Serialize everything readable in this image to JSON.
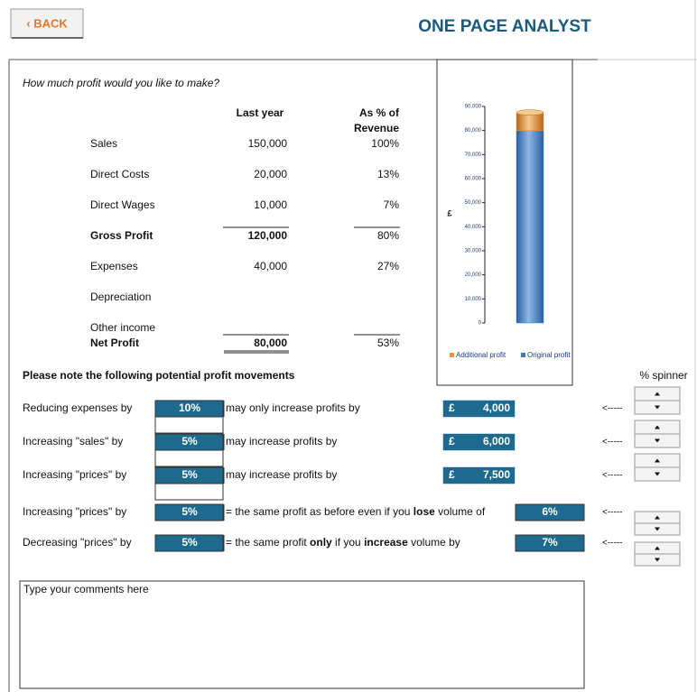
{
  "header": {
    "back": "‹ BACK",
    "title": "ONE PAGE ANALYST"
  },
  "question": "How much profit would you like to make?",
  "table": {
    "headers": [
      "Last year",
      "As % of",
      "Revenue"
    ],
    "rows": [
      {
        "label": "Sales",
        "value": "150,000",
        "pct": "100%"
      },
      {
        "label": "Direct Costs",
        "value": "20,000",
        "pct": "13%"
      },
      {
        "label": "Direct Wages",
        "value": "10,000",
        "pct": "7%"
      },
      {
        "label": "Gross Profit",
        "value": "120,000",
        "pct": "80%",
        "bold": true
      },
      {
        "label": "Expenses",
        "value": "40,000",
        "pct": "27%"
      },
      {
        "label": "Depreciation"
      },
      {
        "label": "Other income"
      },
      {
        "label": "Net Profit",
        "value": "80,000",
        "pct": "53%",
        "bold": true
      }
    ]
  },
  "chart_data": {
    "type": "bar",
    "stacked": true,
    "y_label": "£",
    "categories": [
      null
    ],
    "series": [
      {
        "name": "Original profit",
        "color": "#3d7cc4",
        "values": [
          80000
        ]
      },
      {
        "name": "Additional profit",
        "color": "#e8953a",
        "values": [
          7500
        ]
      }
    ],
    "ylim": [
      0,
      90000
    ],
    "yticks": [
      0,
      {
        "value": 10000,
        "label": "10,000"
      },
      {
        "value": 20000,
        "label": "20,000"
      },
      {
        "value": 30000,
        "label": "30,000"
      },
      {
        "value": 40000,
        "label": "40,000"
      },
      {
        "value": 50000,
        "label": "50,000"
      },
      {
        "value": 60000,
        "label": "60,000"
      },
      {
        "value": 70000,
        "label": "70,000"
      },
      {
        "value": 80000,
        "label": "80,000"
      },
      {
        "value": 90000,
        "label": "90,000"
      }
    ],
    "legend": "bottom"
  },
  "movements": {
    "title": "Please note the following potential profit movements",
    "spinner_label": "% spinner",
    "arrow": "<-----",
    "rows": [
      {
        "label": "Reducing expenses by",
        "input": "10%",
        "text": [
          "may only increase profits by"
        ],
        "currency": "£",
        "result": "4,000"
      },
      {
        "label": "Increasing \"sales\" by",
        "input": "5%",
        "text": [
          "may increase profits by"
        ],
        "currency": "£",
        "result": "6,000"
      },
      {
        "label": "Increasing \"prices\" by",
        "input": "5%",
        "text": [
          "may increase profits by"
        ],
        "currency": "£",
        "result": "7,500"
      },
      {
        "label": "Increasing \"prices\" by",
        "input": "5%",
        "text": [
          "= the same profit as before even if you ",
          "lose",
          " volume of"
        ],
        "result": "6%"
      },
      {
        "label": "Decreasing \"prices\" by",
        "input": "5%",
        "text": [
          "= the same profit ",
          "only",
          " if you ",
          "increase",
          " volume by"
        ],
        "result": "7%"
      }
    ]
  },
  "comments": "Type your comments here"
}
